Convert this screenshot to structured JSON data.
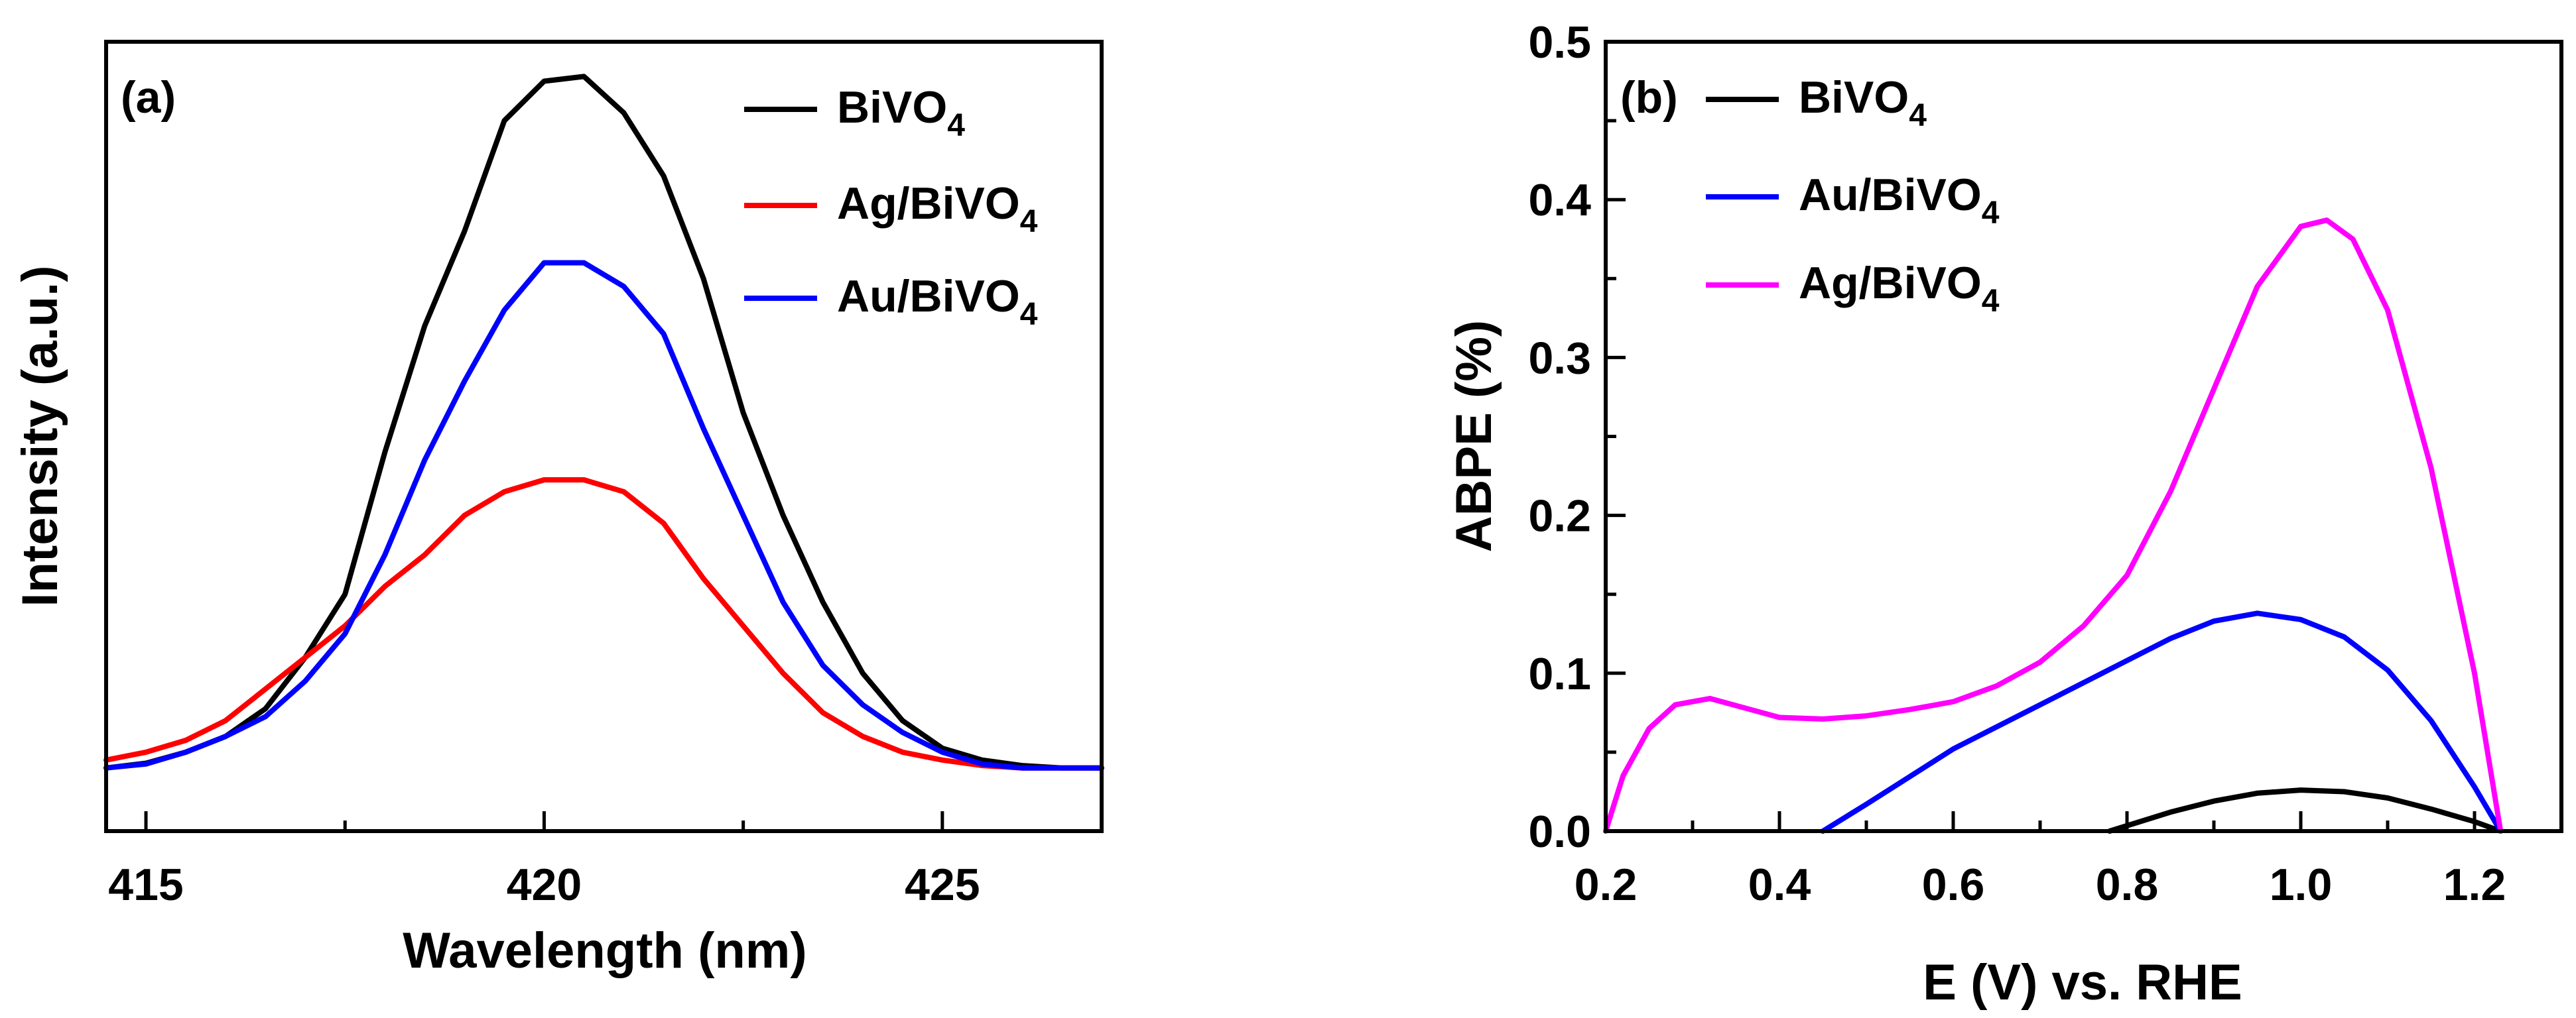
{
  "chart_data": [
    {
      "type": "line",
      "panel_label": "(a)",
      "title": "",
      "xlabel": "Wavelength (nm)",
      "ylabel": "Intensity (a.u.)",
      "xlim": [
        414.5,
        427
      ],
      "ylim": [
        0,
        100
      ],
      "xticks": [
        415,
        420,
        425
      ],
      "yticks": [],
      "legend_position": "top-right",
      "series": [
        {
          "name": "BiVO",
          "subscript": "4",
          "color": "#000000",
          "x": [
            414.5,
            415,
            415.5,
            416,
            416.5,
            417,
            417.5,
            418,
            418.5,
            419,
            419.5,
            420,
            420.5,
            421,
            421.5,
            422,
            422.5,
            423,
            423.5,
            424,
            424.5,
            425,
            425.5,
            426,
            426.5,
            427
          ],
          "y": [
            8,
            8.6,
            10,
            12,
            15.5,
            22,
            30,
            48,
            64,
            76,
            90,
            95,
            95.6,
            91,
            83,
            70,
            53,
            40,
            29,
            20,
            14,
            10.5,
            9,
            8.3,
            8,
            8
          ]
        },
        {
          "name": "Ag/BiVO",
          "subscript": "4",
          "color": "#ff0000",
          "x": [
            414.5,
            415,
            415.5,
            416,
            416.5,
            417,
            417.5,
            418,
            418.5,
            419,
            419.5,
            420,
            420.5,
            421,
            421.5,
            422,
            422.5,
            423,
            423.5,
            424,
            424.5,
            425,
            425.5,
            426,
            426.5,
            427
          ],
          "y": [
            9,
            10,
            11.5,
            14,
            18,
            22,
            26,
            31,
            35,
            40,
            43,
            44.5,
            44.5,
            43,
            39,
            32,
            26,
            20,
            15,
            12,
            10,
            9,
            8.3,
            8,
            8,
            8
          ]
        },
        {
          "name": "Au/BiVO",
          "subscript": "4",
          "color": "#0000ff",
          "x": [
            414.5,
            415,
            415.5,
            416,
            416.5,
            417,
            417.5,
            418,
            418.5,
            419,
            419.5,
            420,
            420.5,
            421,
            421.5,
            422,
            422.5,
            423,
            423.5,
            424,
            424.5,
            425,
            425.5,
            426,
            426.5,
            427
          ],
          "y": [
            8,
            8.5,
            10,
            12,
            14.5,
            19,
            25,
            35,
            47,
            57,
            66,
            72,
            72,
            69,
            63,
            51,
            40,
            29,
            21,
            16,
            12.5,
            10,
            8.5,
            8,
            8,
            8
          ]
        }
      ]
    },
    {
      "type": "line",
      "panel_label": "(b)",
      "title": "",
      "xlabel": "E (V) vs. RHE",
      "ylabel": "ABPE (%)",
      "xlim": [
        0.2,
        1.3
      ],
      "ylim": [
        0,
        0.5
      ],
      "xticks": [
        0.2,
        0.4,
        0.6,
        0.8,
        1.0,
        1.2
      ],
      "xtick_labels": [
        "0.2",
        "0.4",
        "0.6",
        "0.8",
        "1.0",
        "1.2"
      ],
      "yticks": [
        0.0,
        0.1,
        0.2,
        0.3,
        0.4,
        0.5
      ],
      "ytick_labels": [
        "0.0",
        "0.1",
        "0.2",
        "0.3",
        "0.4",
        "0.5"
      ],
      "legend_position": "top-left",
      "series": [
        {
          "name": "BiVO",
          "subscript": "4",
          "color": "#000000",
          "x": [
            0.78,
            0.85,
            0.9,
            0.95,
            1.0,
            1.05,
            1.1,
            1.15,
            1.2,
            1.23
          ],
          "y": [
            0.0,
            0.012,
            0.019,
            0.024,
            0.026,
            0.025,
            0.021,
            0.014,
            0.006,
            0.0
          ]
        },
        {
          "name": "Au/BiVO",
          "subscript": "4",
          "color": "#0000ff",
          "x": [
            0.45,
            0.5,
            0.6,
            0.7,
            0.8,
            0.85,
            0.9,
            0.95,
            1.0,
            1.05,
            1.1,
            1.15,
            1.2,
            1.23
          ],
          "y": [
            0.0,
            0.017,
            0.052,
            0.08,
            0.108,
            0.122,
            0.133,
            0.138,
            0.134,
            0.123,
            0.102,
            0.07,
            0.028,
            0.0
          ]
        },
        {
          "name": "Ag/BiVO",
          "subscript": "4",
          "color": "#ff00ff",
          "x": [
            0.2,
            0.22,
            0.25,
            0.28,
            0.32,
            0.36,
            0.4,
            0.45,
            0.5,
            0.55,
            0.6,
            0.65,
            0.7,
            0.75,
            0.8,
            0.85,
            0.9,
            0.95,
            1.0,
            1.03,
            1.06,
            1.1,
            1.15,
            1.2,
            1.23
          ],
          "y": [
            0.0,
            0.035,
            0.065,
            0.08,
            0.084,
            0.078,
            0.072,
            0.071,
            0.073,
            0.077,
            0.082,
            0.092,
            0.107,
            0.13,
            0.162,
            0.215,
            0.28,
            0.345,
            0.383,
            0.387,
            0.375,
            0.33,
            0.23,
            0.1,
            0.0
          ]
        }
      ]
    }
  ]
}
